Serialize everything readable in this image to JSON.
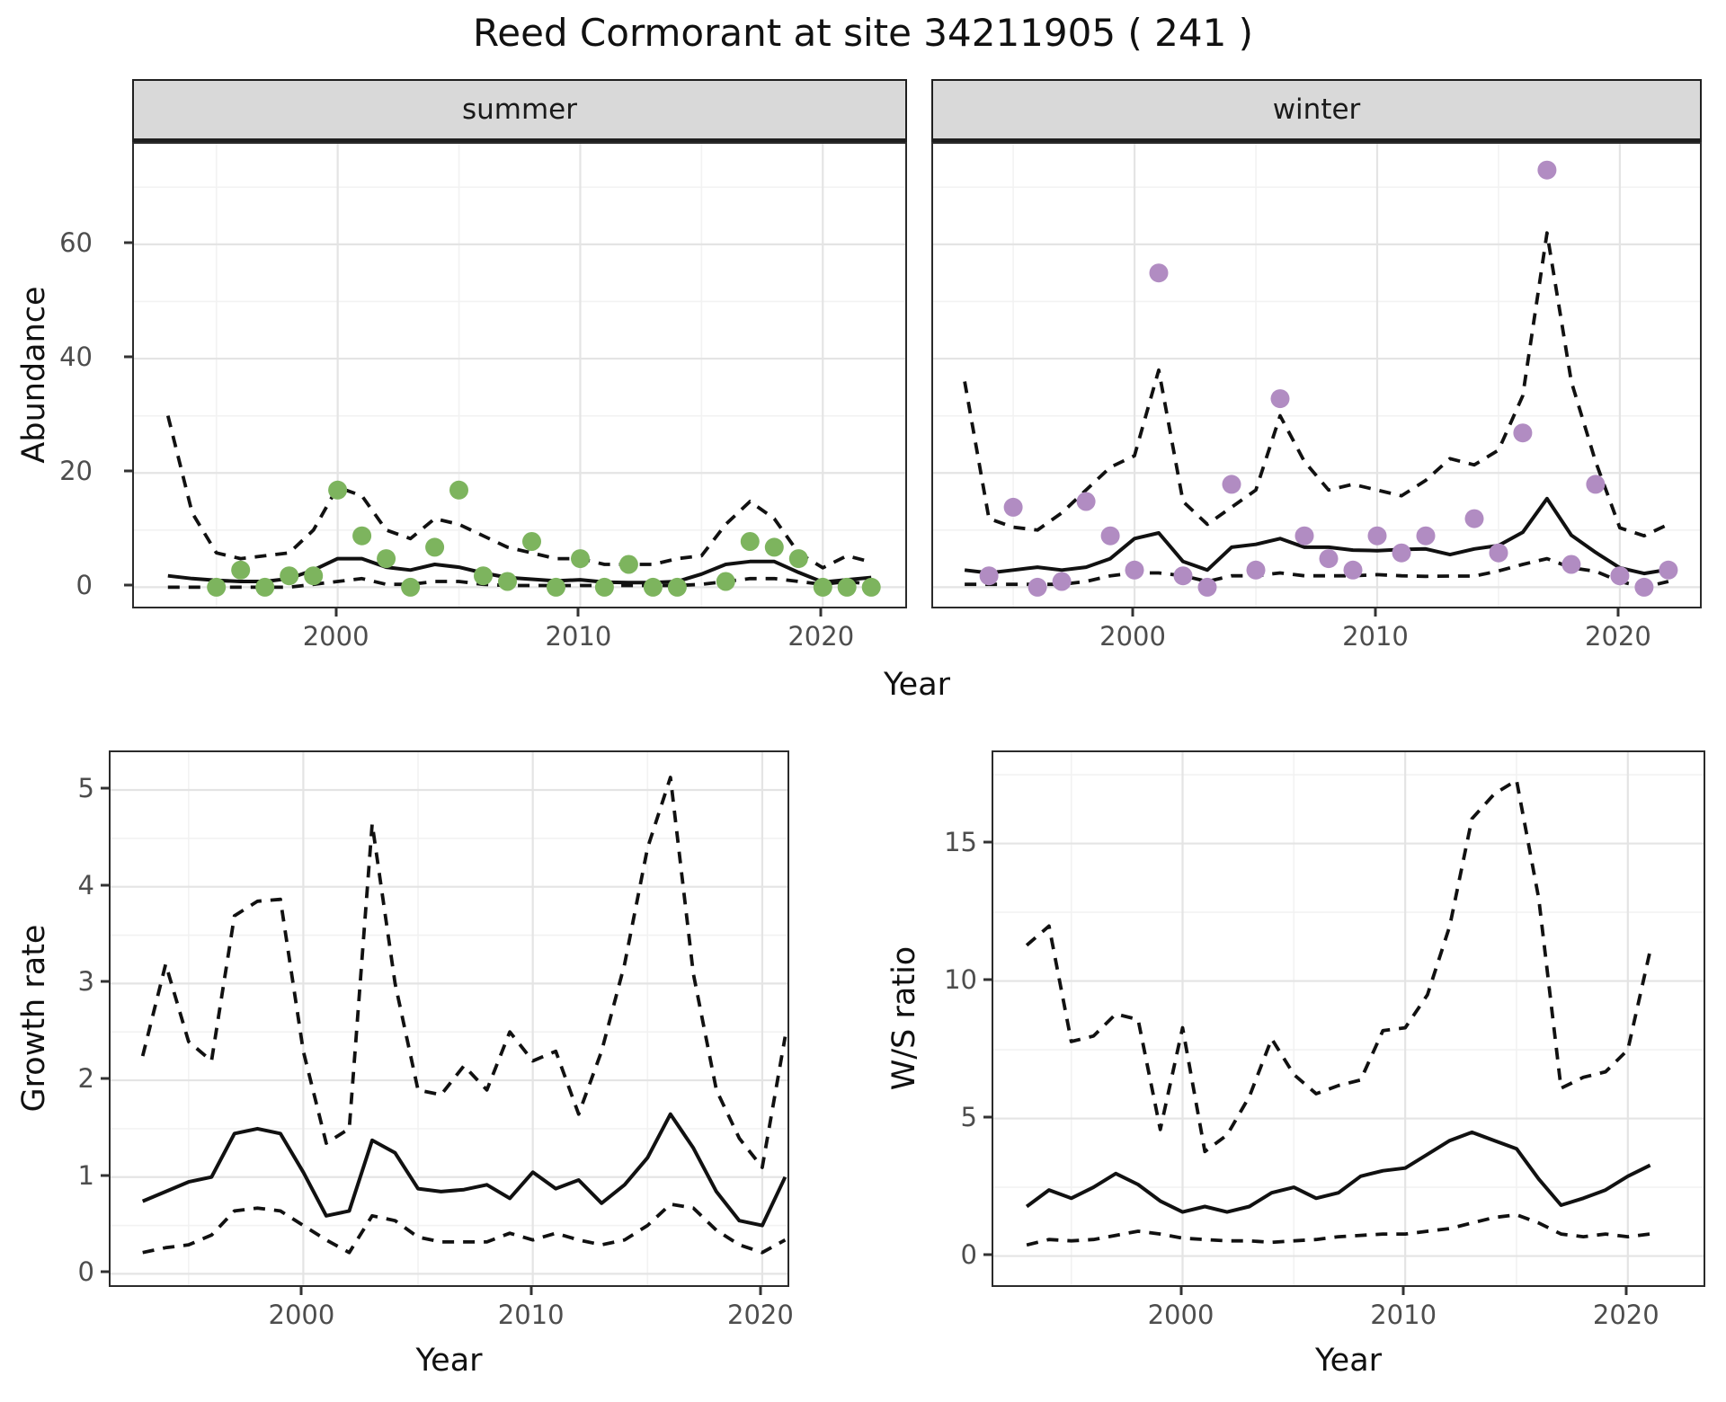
{
  "title": "Reed Cormorant at site 34211905 ( 241 )",
  "colors": {
    "summer_points": "#7db45e",
    "winter_points": "#b18cc2",
    "line": "#111111",
    "grid_major": "#e4e4e4",
    "grid_minor": "#f2f2f2",
    "strip_bg": "#d9d9d9",
    "axis_text": "#4d4d4d",
    "panel_border": "#2b2b2b"
  },
  "facets": [
    {
      "label": "summer"
    },
    {
      "label": "winter"
    }
  ],
  "axes": {
    "top": {
      "y_label": "Abundance",
      "x_label": "Year"
    },
    "growth": {
      "y_label": "Growth rate",
      "x_label": "Year"
    },
    "ws": {
      "y_label": "W/S ratio",
      "x_label": "Year"
    }
  },
  "chart_data": [
    {
      "id": "abundance-summer",
      "type": "scatter",
      "facet": "summer",
      "x_domain": [
        1991.6,
        2023.4
      ],
      "y_domain": [
        -3.4,
        77.6
      ],
      "x_major": [
        2000,
        2010,
        2020
      ],
      "x_minor": [
        1995,
        2005,
        2015
      ],
      "y_major": [
        0,
        20,
        40,
        60
      ],
      "y_minor": [
        10,
        30,
        50,
        70
      ],
      "x_tick_labels": [
        "2000",
        "2010",
        "2020"
      ],
      "y_tick_labels": [
        "0",
        "20",
        "40",
        "60"
      ],
      "show_y_axis": true,
      "years": [
        1993,
        1994,
        1995,
        1996,
        1997,
        1998,
        1999,
        2000,
        2001,
        2002,
        2003,
        2004,
        2005,
        2006,
        2007,
        2008,
        2009,
        2010,
        2011,
        2012,
        2013,
        2014,
        2015,
        2016,
        2017,
        2018,
        2019,
        2020,
        2021,
        2022
      ],
      "points": {
        "name": "observed-counts",
        "color_key": "summer_points",
        "years": [
          1995,
          1996,
          1997,
          1998,
          1999,
          2000,
          2001,
          2002,
          2003,
          2004,
          2005,
          2006,
          2007,
          2008,
          2009,
          2010,
          2011,
          2012,
          2013,
          2014,
          2016,
          2017,
          2018,
          2019,
          2020,
          2021,
          2022
        ],
        "values": [
          0,
          3,
          0,
          2,
          2,
          17,
          9,
          5,
          0,
          7,
          17,
          2,
          1,
          8,
          0,
          5,
          0,
          4,
          0,
          0,
          1,
          8,
          7,
          5,
          0,
          0,
          0
        ]
      },
      "series": [
        {
          "name": "median",
          "style": "solid",
          "values": [
            2,
            1.5,
            1.2,
            1,
            1,
            1.5,
            3,
            5,
            5,
            3.5,
            3,
            4,
            3.5,
            2.5,
            1.7,
            1.4,
            1.1,
            1.3,
            0.9,
            0.8,
            0.8,
            1,
            2.3,
            4,
            4.5,
            4.5,
            2.6,
            0.9,
            1.3,
            1.7
          ]
        },
        {
          "name": "upper-ci",
          "style": "dashed",
          "values": [
            30,
            13,
            6,
            5,
            5.5,
            6,
            10,
            17.5,
            16,
            10,
            8.5,
            12,
            11,
            9,
            7,
            6,
            5,
            5,
            4,
            4,
            4,
            5,
            5.5,
            11,
            15,
            12,
            6,
            3.4,
            5.5,
            4.4
          ]
        },
        {
          "name": "lower-ci",
          "style": "dashed",
          "values": [
            0,
            0,
            0,
            0,
            0,
            0,
            0.5,
            1,
            1.5,
            0.5,
            0.5,
            1,
            1,
            0.5,
            0.3,
            0.3,
            0.3,
            0.3,
            0.3,
            0.3,
            0.3,
            0.3,
            0.5,
            1,
            1.5,
            1.5,
            1,
            0.5,
            1,
            0.5
          ]
        }
      ]
    },
    {
      "id": "abundance-winter",
      "type": "scatter",
      "facet": "winter",
      "x_domain": [
        1991.7,
        2023.3
      ],
      "y_domain": [
        -3.4,
        77.6
      ],
      "x_major": [
        2000,
        2010,
        2020
      ],
      "x_minor": [
        1995,
        2005,
        2015
      ],
      "y_major": [
        0,
        20,
        40,
        60
      ],
      "y_minor": [
        10,
        30,
        50,
        70
      ],
      "x_tick_labels": [
        "2000",
        "2010",
        "2020"
      ],
      "y_tick_labels": [
        "0",
        "20",
        "40",
        "60"
      ],
      "show_y_axis": false,
      "years": [
        1993,
        1994,
        1995,
        1996,
        1997,
        1998,
        1999,
        2000,
        2001,
        2002,
        2003,
        2004,
        2005,
        2006,
        2007,
        2008,
        2009,
        2010,
        2011,
        2012,
        2013,
        2014,
        2015,
        2016,
        2017,
        2018,
        2019,
        2020,
        2021,
        2022
      ],
      "points": {
        "name": "observed-counts",
        "color_key": "winter_points",
        "years": [
          1994,
          1995,
          1996,
          1997,
          1998,
          1999,
          2000,
          2001,
          2002,
          2003,
          2004,
          2005,
          2006,
          2007,
          2008,
          2009,
          2010,
          2011,
          2012,
          2014,
          2015,
          2016,
          2017,
          2018,
          2019,
          2020,
          2021,
          2022
        ],
        "values": [
          2,
          14,
          0,
          1,
          15,
          9,
          3,
          55,
          2,
          0,
          18,
          3,
          33,
          9,
          5,
          3,
          9,
          6,
          9,
          12,
          6,
          27,
          73,
          4,
          18,
          2,
          0,
          3
        ]
      },
      "series": [
        {
          "name": "median",
          "style": "solid",
          "values": [
            3,
            2.5,
            3,
            3.5,
            3,
            3.5,
            5,
            8.5,
            9.5,
            4.5,
            3,
            7,
            7.5,
            8.5,
            7,
            7,
            6.5,
            6.4,
            6.6,
            6.7,
            5.7,
            6.7,
            7.3,
            9.6,
            15.5,
            9.1,
            6.1,
            3.4,
            2.4,
            3.1
          ]
        },
        {
          "name": "upper-ci",
          "style": "dashed",
          "values": [
            36,
            12,
            10.5,
            10,
            13,
            17,
            21,
            23,
            38,
            15,
            11,
            14,
            17,
            30,
            22,
            17,
            18,
            17,
            16,
            18.7,
            22.5,
            21.4,
            24,
            33.5,
            62,
            36,
            22,
            10.4,
            9,
            11
          ]
        },
        {
          "name": "lower-ci",
          "style": "dashed",
          "values": [
            0.5,
            0.5,
            0.5,
            0.5,
            0.5,
            1,
            2,
            2.5,
            2.5,
            2,
            1,
            2,
            2,
            2.5,
            2,
            2,
            2,
            2.2,
            2,
            1.9,
            1.95,
            1.95,
            2.85,
            4,
            5,
            3.4,
            2.8,
            1,
            0,
            1
          ]
        }
      ]
    },
    {
      "id": "growth",
      "type": "line",
      "x_domain": [
        1991.6,
        2021.1
      ],
      "y_domain": [
        -0.117,
        5.39
      ],
      "x_major": [
        2000,
        2010,
        2020
      ],
      "x_minor": [
        1995,
        2005,
        2015
      ],
      "y_major": [
        0,
        1,
        2,
        3,
        4,
        5
      ],
      "y_minor": [
        0.5,
        1.5,
        2.5,
        3.5,
        4.5
      ],
      "x_tick_labels": [
        "2000",
        "2010",
        "2020"
      ],
      "y_tick_labels": [
        "0",
        "1",
        "2",
        "3",
        "4",
        "5"
      ],
      "show_y_axis": true,
      "years": [
        1993,
        1994,
        1995,
        1996,
        1997,
        1998,
        1999,
        2000,
        2001,
        2002,
        2003,
        2004,
        2005,
        2006,
        2007,
        2008,
        2009,
        2010,
        2011,
        2012,
        2013,
        2014,
        2015,
        2016,
        2017,
        2018,
        2019,
        2020,
        2021
      ],
      "series": [
        {
          "name": "median",
          "style": "solid",
          "values": [
            0.75,
            0.85,
            0.95,
            1,
            1.45,
            1.5,
            1.45,
            1.05,
            0.6,
            0.65,
            1.38,
            1.25,
            0.88,
            0.85,
            0.87,
            0.92,
            0.78,
            1.05,
            0.88,
            0.97,
            0.73,
            0.92,
            1.2,
            1.65,
            1.3,
            0.85,
            0.55,
            0.5,
            1
          ]
        },
        {
          "name": "upper-ci",
          "style": "dashed",
          "values": [
            2.25,
            3.2,
            2.4,
            2.2,
            3.7,
            3.85,
            3.87,
            2.3,
            1.35,
            1.5,
            4.65,
            3,
            1.9,
            1.85,
            2.15,
            1.9,
            2.5,
            2.2,
            2.3,
            1.65,
            2.3,
            3.2,
            4.4,
            5.13,
            3.1,
            1.9,
            1.4,
            1.1,
            2.45
          ]
        },
        {
          "name": "lower-ci",
          "style": "dashed",
          "values": [
            0.22,
            0.27,
            0.3,
            0.4,
            0.65,
            0.68,
            0.65,
            0.5,
            0.35,
            0.22,
            0.6,
            0.55,
            0.38,
            0.33,
            0.33,
            0.33,
            0.42,
            0.35,
            0.42,
            0.35,
            0.3,
            0.35,
            0.5,
            0.72,
            0.68,
            0.45,
            0.3,
            0.22,
            0.35
          ]
        }
      ]
    },
    {
      "id": "ws",
      "type": "line",
      "x_domain": [
        1991.5,
        2023.4
      ],
      "y_domain": [
        -1.06,
        18.32
      ],
      "x_major": [
        2000,
        2010,
        2020
      ],
      "x_minor": [
        1995,
        2005,
        2015
      ],
      "y_major": [
        0,
        5,
        10,
        15
      ],
      "y_minor": [
        2.5,
        7.5,
        12.5,
        17.5
      ],
      "x_tick_labels": [
        "2000",
        "2010",
        "2020"
      ],
      "y_tick_labels": [
        "0",
        "5",
        "10",
        "15"
      ],
      "show_y_axis": true,
      "years": [
        1993,
        1994,
        1995,
        1996,
        1997,
        1998,
        1999,
        2000,
        2001,
        2002,
        2003,
        2004,
        2005,
        2006,
        2007,
        2008,
        2009,
        2010,
        2011,
        2012,
        2013,
        2014,
        2015,
        2016,
        2017,
        2018,
        2019,
        2020,
        2021
      ],
      "series": [
        {
          "name": "median",
          "style": "solid",
          "values": [
            1.8,
            2.4,
            2.1,
            2.5,
            3,
            2.6,
            2,
            1.6,
            1.8,
            1.6,
            1.8,
            2.3,
            2.5,
            2.1,
            2.3,
            2.9,
            3.1,
            3.2,
            3.7,
            4.2,
            4.5,
            4.2,
            3.9,
            2.8,
            1.85,
            2.1,
            2.4,
            2.9,
            3.3
          ]
        },
        {
          "name": "upper-ci",
          "style": "dashed",
          "values": [
            11.3,
            12,
            7.8,
            8,
            8.8,
            8.6,
            4.6,
            8.3,
            3.8,
            4.4,
            5.8,
            7.9,
            6.6,
            5.9,
            6.2,
            6.4,
            8.2,
            8.3,
            9.5,
            12,
            15.9,
            16.8,
            17.3,
            13,
            6.1,
            6.5,
            6.7,
            7.5,
            11.1
          ]
        },
        {
          "name": "lower-ci",
          "style": "dashed",
          "values": [
            0.4,
            0.6,
            0.55,
            0.6,
            0.75,
            0.9,
            0.8,
            0.65,
            0.6,
            0.55,
            0.55,
            0.5,
            0.55,
            0.6,
            0.7,
            0.75,
            0.8,
            0.8,
            0.9,
            1,
            1.2,
            1.4,
            1.5,
            1.2,
            0.8,
            0.7,
            0.8,
            0.7,
            0.8
          ]
        }
      ]
    }
  ]
}
